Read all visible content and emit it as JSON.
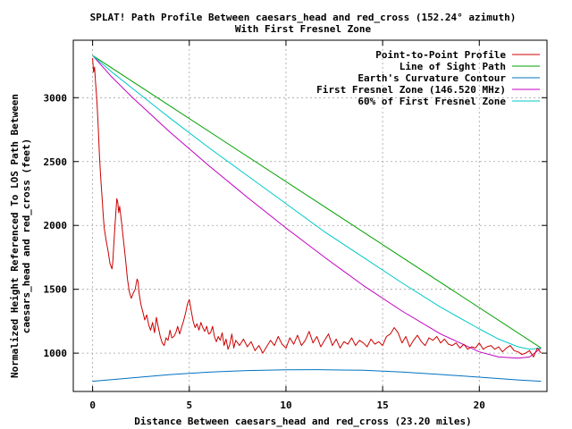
{
  "chart_data": {
    "type": "line",
    "title": "SPLAT! Path Profile Between caesars_head and red_cross (152.24° azimuth)",
    "subtitle": "With First Fresnel Zone",
    "xlabel": "Distance Between caesars_head and red_cross (23.20 miles)",
    "ylabel_line1": "Normalized Height Referenced To LOS Path Between",
    "ylabel_line2": "caesars_head and red_cross (feet)",
    "xlim": [
      -1,
      23.5
    ],
    "ylim": [
      700,
      3450
    ],
    "x_ticks": [
      0,
      5,
      10,
      15,
      20
    ],
    "y_ticks": [
      1000,
      1500,
      2000,
      2500,
      3000
    ],
    "grid": true,
    "legend_position": "top-right",
    "series": [
      {
        "name": "Point-to-Point Profile",
        "color": "#cc0000",
        "points": [
          [
            0,
            3310
          ],
          [
            0.05,
            3200
          ],
          [
            0.1,
            3240
          ],
          [
            0.15,
            3120
          ],
          [
            0.2,
            3020
          ],
          [
            0.25,
            2900
          ],
          [
            0.3,
            2740
          ],
          [
            0.35,
            2560
          ],
          [
            0.4,
            2420
          ],
          [
            0.45,
            2300
          ],
          [
            0.5,
            2200
          ],
          [
            0.55,
            2080
          ],
          [
            0.6,
            1980
          ],
          [
            0.7,
            1880
          ],
          [
            0.8,
            1800
          ],
          [
            0.9,
            1700
          ],
          [
            1.0,
            1660
          ],
          [
            1.05,
            1720
          ],
          [
            1.1,
            1860
          ],
          [
            1.2,
            2100
          ],
          [
            1.25,
            2210
          ],
          [
            1.3,
            2180
          ],
          [
            1.35,
            2100
          ],
          [
            1.4,
            2150
          ],
          [
            1.5,
            2020
          ],
          [
            1.6,
            1880
          ],
          [
            1.7,
            1740
          ],
          [
            1.8,
            1580
          ],
          [
            1.9,
            1480
          ],
          [
            2.0,
            1430
          ],
          [
            2.1,
            1470
          ],
          [
            2.2,
            1500
          ],
          [
            2.3,
            1580
          ],
          [
            2.35,
            1560
          ],
          [
            2.4,
            1470
          ],
          [
            2.5,
            1380
          ],
          [
            2.6,
            1320
          ],
          [
            2.7,
            1260
          ],
          [
            2.8,
            1300
          ],
          [
            2.9,
            1220
          ],
          [
            3.0,
            1180
          ],
          [
            3.1,
            1240
          ],
          [
            3.2,
            1160
          ],
          [
            3.3,
            1280
          ],
          [
            3.4,
            1200
          ],
          [
            3.5,
            1130
          ],
          [
            3.6,
            1080
          ],
          [
            3.7,
            1060
          ],
          [
            3.8,
            1120
          ],
          [
            3.9,
            1100
          ],
          [
            4.0,
            1180
          ],
          [
            4.1,
            1120
          ],
          [
            4.2,
            1130
          ],
          [
            4.3,
            1160
          ],
          [
            4.4,
            1210
          ],
          [
            4.5,
            1150
          ],
          [
            4.6,
            1200
          ],
          [
            4.7,
            1250
          ],
          [
            4.8,
            1310
          ],
          [
            4.9,
            1380
          ],
          [
            5.0,
            1420
          ],
          [
            5.1,
            1330
          ],
          [
            5.2,
            1250
          ],
          [
            5.3,
            1200
          ],
          [
            5.4,
            1230
          ],
          [
            5.5,
            1180
          ],
          [
            5.6,
            1240
          ],
          [
            5.7,
            1200
          ],
          [
            5.8,
            1170
          ],
          [
            5.9,
            1210
          ],
          [
            6.0,
            1150
          ],
          [
            6.1,
            1160
          ],
          [
            6.2,
            1210
          ],
          [
            6.3,
            1130
          ],
          [
            6.4,
            1090
          ],
          [
            6.5,
            1130
          ],
          [
            6.6,
            1100
          ],
          [
            6.7,
            1160
          ],
          [
            6.8,
            1060
          ],
          [
            6.9,
            1110
          ],
          [
            7.0,
            1030
          ],
          [
            7.1,
            1070
          ],
          [
            7.2,
            1150
          ],
          [
            7.3,
            1040
          ],
          [
            7.4,
            1100
          ],
          [
            7.5,
            1080
          ],
          [
            7.6,
            1060
          ],
          [
            7.8,
            1110
          ],
          [
            8.0,
            1050
          ],
          [
            8.2,
            1090
          ],
          [
            8.4,
            1020
          ],
          [
            8.6,
            1060
          ],
          [
            8.8,
            1000
          ],
          [
            9.0,
            1050
          ],
          [
            9.2,
            1100
          ],
          [
            9.4,
            1060
          ],
          [
            9.6,
            1130
          ],
          [
            9.8,
            1070
          ],
          [
            10.0,
            1040
          ],
          [
            10.2,
            1120
          ],
          [
            10.4,
            1070
          ],
          [
            10.6,
            1140
          ],
          [
            10.8,
            1060
          ],
          [
            11.0,
            1100
          ],
          [
            11.2,
            1170
          ],
          [
            11.4,
            1080
          ],
          [
            11.6,
            1130
          ],
          [
            11.8,
            1050
          ],
          [
            12.0,
            1100
          ],
          [
            12.2,
            1150
          ],
          [
            12.4,
            1060
          ],
          [
            12.6,
            1110
          ],
          [
            12.8,
            1040
          ],
          [
            13.0,
            1090
          ],
          [
            13.2,
            1070
          ],
          [
            13.4,
            1120
          ],
          [
            13.6,
            1060
          ],
          [
            13.8,
            1100
          ],
          [
            14.0,
            1080
          ],
          [
            14.2,
            1050
          ],
          [
            14.4,
            1110
          ],
          [
            14.6,
            1070
          ],
          [
            14.8,
            1090
          ],
          [
            15.0,
            1060
          ],
          [
            15.2,
            1130
          ],
          [
            15.4,
            1150
          ],
          [
            15.6,
            1200
          ],
          [
            15.8,
            1160
          ],
          [
            16.0,
            1080
          ],
          [
            16.2,
            1130
          ],
          [
            16.4,
            1050
          ],
          [
            16.6,
            1100
          ],
          [
            16.8,
            1140
          ],
          [
            17.0,
            1090
          ],
          [
            17.2,
            1060
          ],
          [
            17.4,
            1120
          ],
          [
            17.6,
            1100
          ],
          [
            17.8,
            1130
          ],
          [
            18.0,
            1080
          ],
          [
            18.2,
            1110
          ],
          [
            18.4,
            1070
          ],
          [
            18.6,
            1060
          ],
          [
            18.8,
            1080
          ],
          [
            19.0,
            1040
          ],
          [
            19.2,
            1070
          ],
          [
            19.4,
            1030
          ],
          [
            19.6,
            1050
          ],
          [
            19.8,
            1040
          ],
          [
            20.0,
            1080
          ],
          [
            20.2,
            1030
          ],
          [
            20.4,
            1050
          ],
          [
            20.6,
            1060
          ],
          [
            20.8,
            1030
          ],
          [
            21.0,
            1050
          ],
          [
            21.2,
            1010
          ],
          [
            21.4,
            1040
          ],
          [
            21.6,
            1060
          ],
          [
            21.8,
            1020
          ],
          [
            22.0,
            1010
          ],
          [
            22.2,
            990
          ],
          [
            22.4,
            1000
          ],
          [
            22.6,
            1020
          ],
          [
            22.8,
            970
          ],
          [
            23.0,
            1040
          ],
          [
            23.2,
            1000
          ]
        ]
      },
      {
        "name": "Line of Sight Path",
        "color": "#00a000",
        "points": [
          [
            0,
            3330
          ],
          [
            23.2,
            1040
          ]
        ]
      },
      {
        "name": "Earth's Curvature Contour",
        "color": "#0070c0",
        "points": [
          [
            0,
            780
          ],
          [
            2,
            806
          ],
          [
            4,
            832
          ],
          [
            6,
            851
          ],
          [
            8,
            864
          ],
          [
            10,
            870
          ],
          [
            11.6,
            871
          ],
          [
            14,
            866
          ],
          [
            16,
            852
          ],
          [
            18,
            833
          ],
          [
            20,
            812
          ],
          [
            22,
            790
          ],
          [
            23.2,
            780
          ]
        ]
      },
      {
        "name": "First Fresnel Zone (146.520 MHz)",
        "color": "#c000c0",
        "points": [
          [
            0,
            3330
          ],
          [
            1,
            3160
          ],
          [
            2,
            3010
          ],
          [
            4,
            2730
          ],
          [
            6,
            2470
          ],
          [
            8,
            2220
          ],
          [
            10,
            1980
          ],
          [
            12,
            1750
          ],
          [
            14,
            1530
          ],
          [
            16,
            1330
          ],
          [
            18,
            1150
          ],
          [
            20,
            1010
          ],
          [
            21,
            970
          ],
          [
            22,
            960
          ],
          [
            22.6,
            970
          ],
          [
            23.2,
            1040
          ]
        ]
      },
      {
        "name": "60% of First Fresnel Zone",
        "color": "#00c8c8",
        "points": [
          [
            0,
            3330
          ],
          [
            1,
            3200
          ],
          [
            2,
            3080
          ],
          [
            4,
            2840
          ],
          [
            6,
            2610
          ],
          [
            8,
            2390
          ],
          [
            10,
            2170
          ],
          [
            12,
            1950
          ],
          [
            14,
            1750
          ],
          [
            16,
            1550
          ],
          [
            18,
            1360
          ],
          [
            20,
            1190
          ],
          [
            21,
            1110
          ],
          [
            22,
            1050
          ],
          [
            22.6,
            1030
          ],
          [
            23.2,
            1040
          ]
        ]
      }
    ]
  }
}
